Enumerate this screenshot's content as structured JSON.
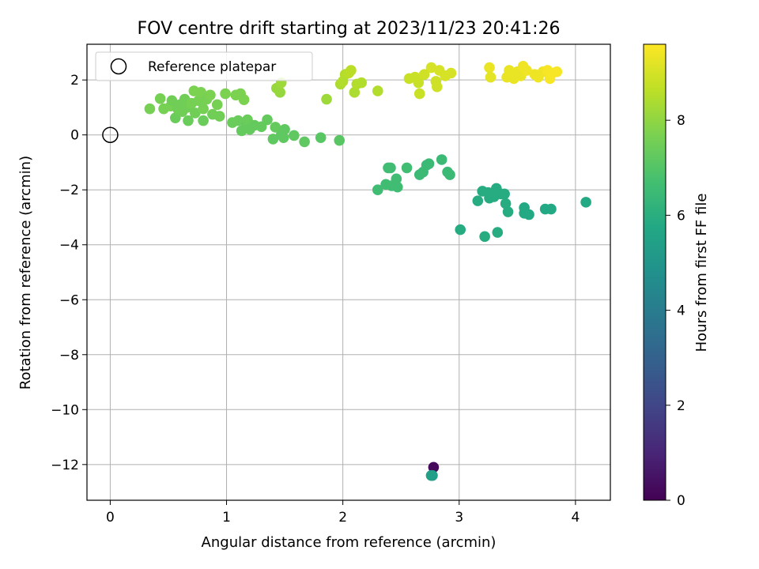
{
  "chart_data": {
    "type": "scatter",
    "title": "FOV centre drift starting at 2023/11/23 20:41:26",
    "xlabel": "Angular distance from reference (arcmin)",
    "ylabel": "Rotation from reference (arcmin)",
    "xlim": [
      -0.2,
      4.3
    ],
    "ylim": [
      -13.3,
      3.3
    ],
    "x_ticks": [
      0,
      1,
      2,
      3,
      4
    ],
    "y_ticks": [
      2,
      0,
      -2,
      -4,
      -6,
      -8,
      -10,
      -12
    ],
    "grid": true,
    "legend": {
      "placement": "top-left",
      "entries": [
        "Reference platepar"
      ]
    },
    "reference_point": {
      "x": 0,
      "y": 0,
      "label": "Reference platepar"
    },
    "colorbar": {
      "label": "Hours from first FF file",
      "range": [
        0,
        9.6
      ],
      "ticks": [
        0,
        2,
        4,
        6,
        8
      ],
      "colormap": "viridis"
    },
    "points": [
      {
        "x": 2.78,
        "y": -12.1,
        "h": 0.2
      },
      {
        "x": 2.77,
        "y": -12.4,
        "h": 5.3
      },
      {
        "x": 2.76,
        "y": -12.4,
        "h": 5.4
      },
      {
        "x": 0.34,
        "y": 0.95,
        "h": 7.6
      },
      {
        "x": 0.43,
        "y": 1.32,
        "h": 7.6
      },
      {
        "x": 0.46,
        "y": 0.95,
        "h": 7.6
      },
      {
        "x": 0.52,
        "y": 1.05,
        "h": 7.6
      },
      {
        "x": 0.53,
        "y": 1.25,
        "h": 7.5
      },
      {
        "x": 0.56,
        "y": 0.62,
        "h": 7.4
      },
      {
        "x": 0.58,
        "y": 0.95,
        "h": 7.5
      },
      {
        "x": 0.6,
        "y": 1.1,
        "h": 7.5
      },
      {
        "x": 0.62,
        "y": 0.85,
        "h": 7.5
      },
      {
        "x": 0.64,
        "y": 1.3,
        "h": 7.5
      },
      {
        "x": 0.66,
        "y": 1.0,
        "h": 7.5
      },
      {
        "x": 0.67,
        "y": 0.52,
        "h": 7.4
      },
      {
        "x": 0.7,
        "y": 1.15,
        "h": 7.6
      },
      {
        "x": 0.72,
        "y": 1.6,
        "h": 7.7
      },
      {
        "x": 0.73,
        "y": 0.8,
        "h": 7.5
      },
      {
        "x": 0.76,
        "y": 1.25,
        "h": 7.6
      },
      {
        "x": 0.78,
        "y": 1.55,
        "h": 7.7
      },
      {
        "x": 0.8,
        "y": 0.95,
        "h": 7.6
      },
      {
        "x": 0.8,
        "y": 0.52,
        "h": 7.4
      },
      {
        "x": 0.83,
        "y": 1.3,
        "h": 7.6
      },
      {
        "x": 0.86,
        "y": 1.45,
        "h": 7.7
      },
      {
        "x": 0.88,
        "y": 0.75,
        "h": 7.5
      },
      {
        "x": 0.92,
        "y": 1.1,
        "h": 7.6
      },
      {
        "x": 0.94,
        "y": 0.68,
        "h": 7.5
      },
      {
        "x": 0.99,
        "y": 1.5,
        "h": 7.7
      },
      {
        "x": 1.05,
        "y": 0.45,
        "h": 7.4
      },
      {
        "x": 1.08,
        "y": 1.45,
        "h": 7.7
      },
      {
        "x": 1.1,
        "y": 0.52,
        "h": 7.4
      },
      {
        "x": 1.12,
        "y": 1.5,
        "h": 7.7
      },
      {
        "x": 1.13,
        "y": 0.15,
        "h": 7.3
      },
      {
        "x": 1.15,
        "y": 1.28,
        "h": 7.7
      },
      {
        "x": 1.17,
        "y": 0.35,
        "h": 7.3
      },
      {
        "x": 1.18,
        "y": 0.55,
        "h": 7.4
      },
      {
        "x": 1.2,
        "y": 0.2,
        "h": 7.3
      },
      {
        "x": 1.24,
        "y": 0.35,
        "h": 7.3
      },
      {
        "x": 1.3,
        "y": 0.3,
        "h": 7.3
      },
      {
        "x": 1.35,
        "y": 0.55,
        "h": 7.3
      },
      {
        "x": 1.4,
        "y": -0.15,
        "h": 7.2
      },
      {
        "x": 1.42,
        "y": 0.28,
        "h": 7.3
      },
      {
        "x": 1.43,
        "y": 1.7,
        "h": 8.1
      },
      {
        "x": 1.46,
        "y": 1.55,
        "h": 8.1
      },
      {
        "x": 1.47,
        "y": 1.9,
        "h": 8.2
      },
      {
        "x": 1.47,
        "y": 0.0,
        "h": 7.2
      },
      {
        "x": 1.49,
        "y": -0.1,
        "h": 7.2
      },
      {
        "x": 1.5,
        "y": 0.2,
        "h": 7.2
      },
      {
        "x": 1.58,
        "y": -0.02,
        "h": 7.2
      },
      {
        "x": 1.67,
        "y": -0.25,
        "h": 7.2
      },
      {
        "x": 1.81,
        "y": -0.1,
        "h": 7.1
      },
      {
        "x": 1.86,
        "y": 1.3,
        "h": 8.2
      },
      {
        "x": 1.97,
        "y": -0.2,
        "h": 7.1
      },
      {
        "x": 1.98,
        "y": 1.85,
        "h": 8.4
      },
      {
        "x": 2.0,
        "y": 1.95,
        "h": 8.5
      },
      {
        "x": 2.02,
        "y": 2.2,
        "h": 8.5
      },
      {
        "x": 2.05,
        "y": 2.25,
        "h": 8.6
      },
      {
        "x": 2.07,
        "y": 2.35,
        "h": 8.6
      },
      {
        "x": 2.1,
        "y": 1.55,
        "h": 8.4
      },
      {
        "x": 2.12,
        "y": 1.85,
        "h": 8.5
      },
      {
        "x": 2.16,
        "y": 1.9,
        "h": 8.5
      },
      {
        "x": 2.3,
        "y": 1.6,
        "h": 8.5
      },
      {
        "x": 2.3,
        "y": -2.0,
        "h": 6.6
      },
      {
        "x": 2.37,
        "y": -1.8,
        "h": 6.6
      },
      {
        "x": 2.39,
        "y": -1.2,
        "h": 6.6
      },
      {
        "x": 2.41,
        "y": -1.2,
        "h": 6.6
      },
      {
        "x": 2.42,
        "y": -1.85,
        "h": 6.6
      },
      {
        "x": 2.46,
        "y": -1.6,
        "h": 6.6
      },
      {
        "x": 2.47,
        "y": -1.9,
        "h": 6.6
      },
      {
        "x": 2.55,
        "y": -1.2,
        "h": 6.6
      },
      {
        "x": 2.57,
        "y": 2.05,
        "h": 8.8
      },
      {
        "x": 2.62,
        "y": 2.1,
        "h": 8.8
      },
      {
        "x": 2.65,
        "y": 1.9,
        "h": 8.8
      },
      {
        "x": 2.66,
        "y": 1.5,
        "h": 8.8
      },
      {
        "x": 2.66,
        "y": -1.45,
        "h": 6.5
      },
      {
        "x": 2.69,
        "y": -1.35,
        "h": 6.5
      },
      {
        "x": 2.7,
        "y": 2.2,
        "h": 8.9
      },
      {
        "x": 2.72,
        "y": -1.1,
        "h": 6.5
      },
      {
        "x": 2.74,
        "y": -1.05,
        "h": 6.5
      },
      {
        "x": 2.76,
        "y": 2.45,
        "h": 9.0
      },
      {
        "x": 2.8,
        "y": 1.95,
        "h": 8.9
      },
      {
        "x": 2.81,
        "y": 1.75,
        "h": 8.9
      },
      {
        "x": 2.83,
        "y": 2.35,
        "h": 9.0
      },
      {
        "x": 2.85,
        "y": -0.9,
        "h": 6.5
      },
      {
        "x": 2.88,
        "y": 2.15,
        "h": 9.0
      },
      {
        "x": 2.9,
        "y": -1.35,
        "h": 6.5
      },
      {
        "x": 2.92,
        "y": -1.45,
        "h": 6.5
      },
      {
        "x": 2.93,
        "y": 2.25,
        "h": 9.0
      },
      {
        "x": 3.01,
        "y": -3.45,
        "h": 5.9
      },
      {
        "x": 3.16,
        "y": -2.4,
        "h": 5.9
      },
      {
        "x": 3.2,
        "y": -2.05,
        "h": 5.9
      },
      {
        "x": 3.22,
        "y": -3.7,
        "h": 5.9
      },
      {
        "x": 3.25,
        "y": -2.1,
        "h": 5.9
      },
      {
        "x": 3.26,
        "y": -2.3,
        "h": 5.9
      },
      {
        "x": 3.26,
        "y": 2.45,
        "h": 9.3
      },
      {
        "x": 3.27,
        "y": 2.1,
        "h": 9.2
      },
      {
        "x": 3.3,
        "y": -2.25,
        "h": 5.9
      },
      {
        "x": 3.32,
        "y": -1.95,
        "h": 5.9
      },
      {
        "x": 3.33,
        "y": -3.55,
        "h": 5.9
      },
      {
        "x": 3.36,
        "y": -2.15,
        "h": 5.9
      },
      {
        "x": 3.39,
        "y": -2.15,
        "h": 5.9
      },
      {
        "x": 3.4,
        "y": -2.5,
        "h": 5.9
      },
      {
        "x": 3.41,
        "y": 2.1,
        "h": 9.3
      },
      {
        "x": 3.42,
        "y": -2.8,
        "h": 5.9
      },
      {
        "x": 3.43,
        "y": 2.35,
        "h": 9.3
      },
      {
        "x": 3.46,
        "y": 2.2,
        "h": 9.3
      },
      {
        "x": 3.47,
        "y": 2.05,
        "h": 9.3
      },
      {
        "x": 3.5,
        "y": 2.3,
        "h": 9.3
      },
      {
        "x": 3.53,
        "y": 2.15,
        "h": 9.3
      },
      {
        "x": 3.55,
        "y": 2.5,
        "h": 9.4
      },
      {
        "x": 3.56,
        "y": -2.85,
        "h": 5.8
      },
      {
        "x": 3.56,
        "y": -2.65,
        "h": 5.8
      },
      {
        "x": 3.58,
        "y": 2.35,
        "h": 9.4
      },
      {
        "x": 3.6,
        "y": -2.9,
        "h": 5.8
      },
      {
        "x": 3.65,
        "y": 2.2,
        "h": 9.4
      },
      {
        "x": 3.68,
        "y": 2.1,
        "h": 9.4
      },
      {
        "x": 3.72,
        "y": 2.3,
        "h": 9.4
      },
      {
        "x": 3.74,
        "y": -2.7,
        "h": 5.8
      },
      {
        "x": 3.76,
        "y": 2.35,
        "h": 9.5
      },
      {
        "x": 3.78,
        "y": 2.05,
        "h": 9.5
      },
      {
        "x": 3.79,
        "y": -2.7,
        "h": 5.8
      },
      {
        "x": 3.8,
        "y": 2.25,
        "h": 9.5
      },
      {
        "x": 3.84,
        "y": 2.3,
        "h": 9.5
      },
      {
        "x": 4.09,
        "y": -2.45,
        "h": 5.8
      }
    ]
  }
}
